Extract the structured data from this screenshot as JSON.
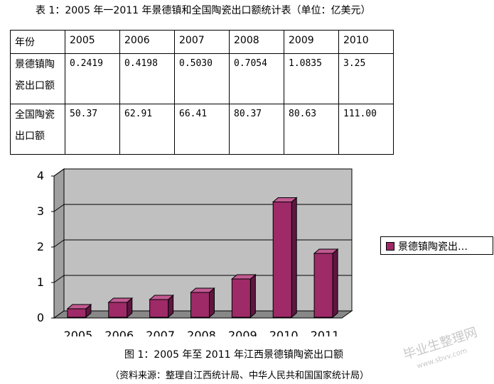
{
  "title": "表 1：2005 年一2011 年景德镇和全国陶瓷出口额统计表（单位：亿美元）",
  "table": {
    "header": [
      "年份",
      "2005",
      "2006",
      "2007",
      "2008",
      "2009",
      "2010"
    ],
    "rows": [
      {
        "label_line1": "景德镇陶",
        "label_line2": "瓷出口额",
        "values": [
          "0.2419",
          "0.4198",
          "0.5030",
          "0.7054",
          "1.0835",
          "3.25"
        ]
      },
      {
        "label_line1": "全国陶瓷",
        "label_line2": "出口额",
        "values": [
          "50.37",
          "62.91",
          "66.41",
          "80.37",
          "80.63",
          "111.00"
        ]
      }
    ]
  },
  "chart_data": {
    "type": "bar",
    "categories": [
      "2005",
      "2006",
      "2007",
      "2008",
      "2009",
      "2010",
      "2011"
    ],
    "series": [
      {
        "name": "景德镇陶瓷出…",
        "values": [
          0.24,
          0.42,
          0.5,
          0.7,
          1.08,
          3.25,
          1.8
        ]
      }
    ],
    "yticks": [
      "0",
      "1",
      "2",
      "3",
      "4"
    ],
    "ylim": [
      0,
      4
    ],
    "grid": true,
    "legend_position": "right",
    "bar_color": "#9e2a68",
    "plot_bg": "#c0c0c0"
  },
  "legend_label": "景德镇陶瓷出…",
  "caption": "图 1：2005 年至 2011 年江西景德镇陶瓷出口额",
  "source": "（资料来源：整理自江西统计局、中华人民共和国国家统计局）",
  "watermark": "毕业生整理网",
  "watermark_sub": "www.sbvv.com"
}
